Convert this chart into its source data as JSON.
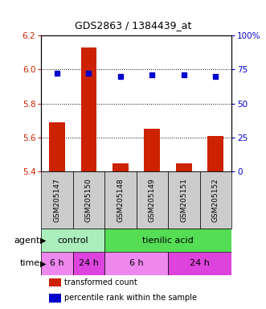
{
  "title": "GDS2863 / 1384439_at",
  "samples": [
    "GSM205147",
    "GSM205150",
    "GSM205148",
    "GSM205149",
    "GSM205151",
    "GSM205152"
  ],
  "bar_values": [
    5.69,
    6.13,
    5.45,
    5.65,
    5.45,
    5.61
  ],
  "dot_values": [
    72,
    72,
    70,
    71,
    71,
    70
  ],
  "ylim_left": [
    5.4,
    6.2
  ],
  "ylim_right": [
    0,
    100
  ],
  "yticks_left": [
    5.4,
    5.6,
    5.8,
    6.0,
    6.2
  ],
  "yticks_right": [
    0,
    25,
    50,
    75,
    100
  ],
  "bar_color": "#cc2200",
  "dot_color": "#0000cc",
  "left_axis_color": "#cc2200",
  "right_axis_color": "#0000cc",
  "agent_color_control": "#aaeebb",
  "agent_color_acid": "#55dd55",
  "time_color_6h": "#ee88ee",
  "time_color_24h": "#dd44dd",
  "sample_box_color": "#cccccc",
  "plot_bg": "#ffffff",
  "legend_items": [
    "transformed count",
    "percentile rank within the sample"
  ]
}
